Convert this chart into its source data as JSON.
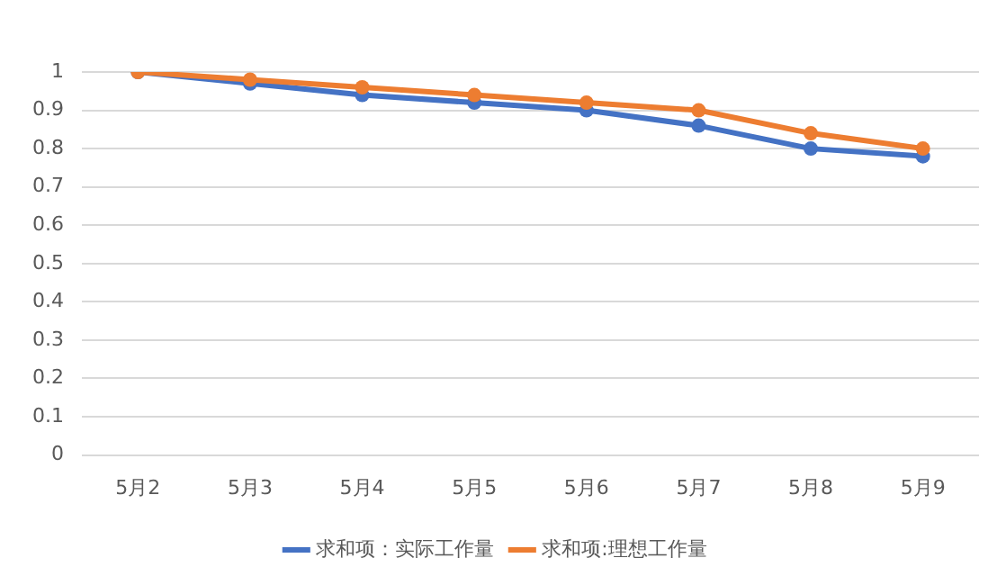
{
  "chart_data": {
    "type": "line",
    "categories": [
      "5月2",
      "5月3",
      "5月4",
      "5月5",
      "5月6",
      "5月7",
      "5月8",
      "5月9"
    ],
    "series": [
      {
        "name": "求和项：实际工作量",
        "color": "#4472c4",
        "values": [
          1,
          0.97,
          0.94,
          0.92,
          0.9,
          0.86,
          0.8,
          0.78
        ]
      },
      {
        "name": "求和项:理想工作量",
        "color": "#ed7d31",
        "values": [
          1,
          0.98,
          0.96,
          0.94,
          0.92,
          0.9,
          0.84,
          0.8
        ]
      }
    ],
    "ylim": [
      0,
      1
    ],
    "yticks": [
      0,
      0.1,
      0.2,
      0.3,
      0.4,
      0.5,
      0.6,
      0.7,
      0.8,
      0.9,
      1
    ],
    "grid": "y",
    "legend": "bottom",
    "marker": "circle",
    "line_style": "solid"
  }
}
